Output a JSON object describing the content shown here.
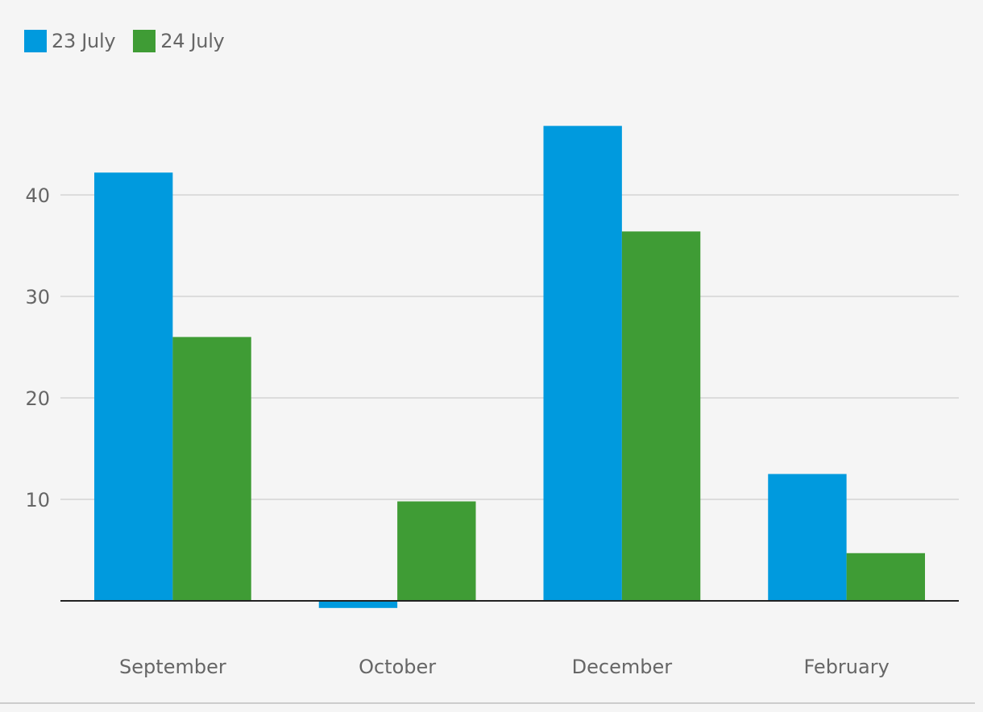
{
  "colors": {
    "series_1": "#009ade",
    "series_2": "#3f9c35",
    "grid": "#dcdcdc",
    "axis": "#222222",
    "text": "#666666",
    "background": "#f5f5f5"
  },
  "chart_data": {
    "type": "bar",
    "title": "",
    "xlabel": "",
    "ylabel": "",
    "categories": [
      "September",
      "October",
      "December",
      "February"
    ],
    "series": [
      {
        "name": "23 July",
        "values": [
          42.2,
          -0.7,
          46.8,
          12.5
        ]
      },
      {
        "name": "24 July",
        "values": [
          26.0,
          9.8,
          36.4,
          4.7
        ]
      }
    ],
    "ylim": [
      -1,
      50
    ],
    "yticks": [
      10,
      20,
      30,
      40
    ],
    "grid": true,
    "legend_position": "top-left"
  }
}
